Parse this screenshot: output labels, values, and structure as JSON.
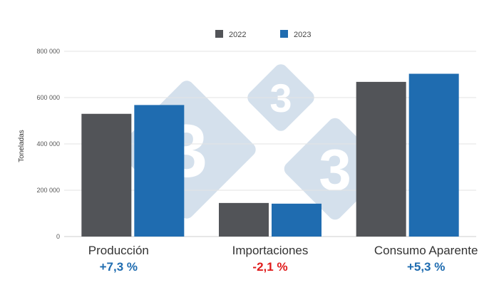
{
  "chart_data": {
    "type": "bar",
    "categories": [
      "Producción",
      "Importaciones",
      "Consumo Aparente"
    ],
    "series": [
      {
        "name": "2022",
        "values": [
          530000,
          145000,
          668000
        ],
        "color": "#525458"
      },
      {
        "name": "2023",
        "values": [
          568000,
          142000,
          703000
        ],
        "color": "#1f6cb0"
      }
    ],
    "changes": [
      {
        "label": "+7,3 %",
        "color": "#1f6cb0"
      },
      {
        "label": "-2,1 %",
        "color": "#e01b1b"
      },
      {
        "label": "+5,3 %",
        "color": "#1f6cb0"
      }
    ],
    "ylabel": "Toneladas",
    "xlabel": "",
    "title": "",
    "ylim": [
      0,
      800000
    ],
    "yticks": [
      0,
      200000,
      400000,
      600000,
      800000
    ],
    "ytick_labels": [
      "0",
      "200 000",
      "400 000",
      "600 000",
      "800 000"
    ],
    "grid": true,
    "legend_position": "top",
    "watermark": {
      "text": "3",
      "color": "#c5d6e6"
    }
  }
}
